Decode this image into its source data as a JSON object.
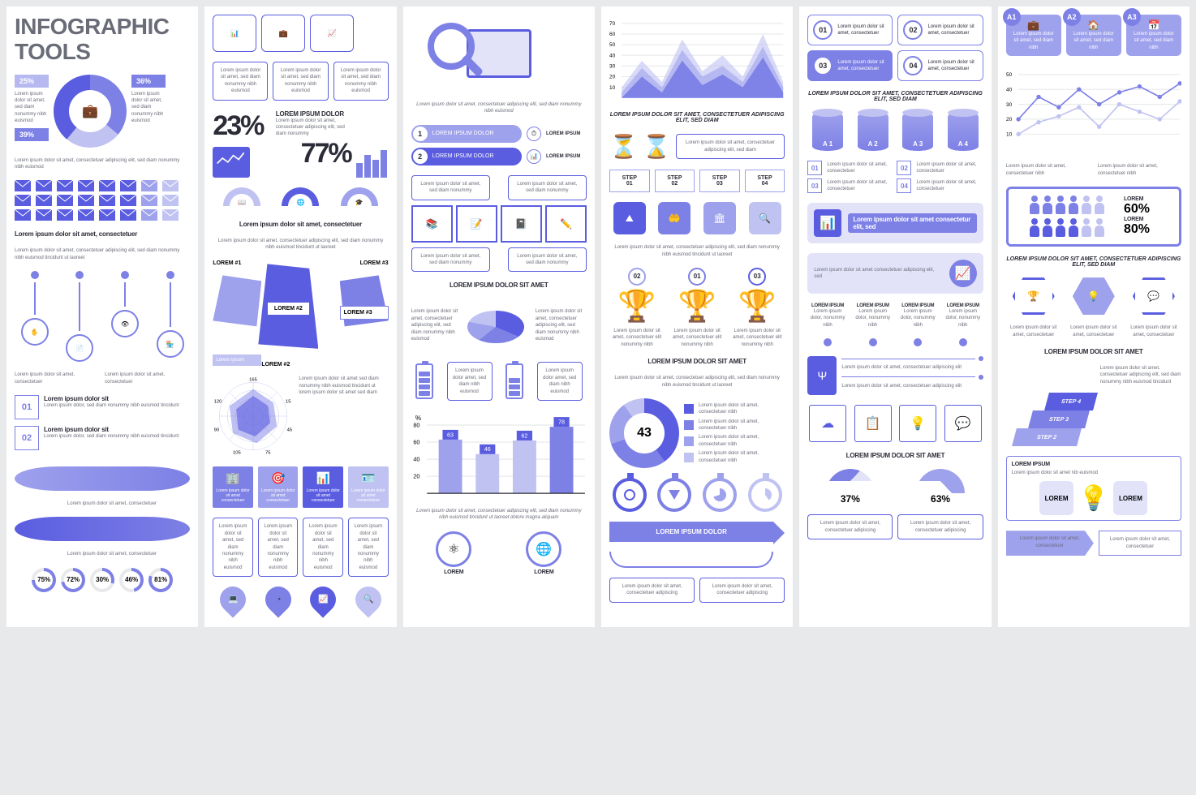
{
  "colors": {
    "primary": "#5a5de0",
    "primary_light": "#7d80e5",
    "primary_lighter": "#9ea1ec",
    "primary_pale": "#c0c2f2",
    "primary_faint": "#e2e3f9",
    "text_dark": "#2b2c37",
    "text_gray": "#6a6d78",
    "bg": "#e8e9eb",
    "white": "#ffffff"
  },
  "lorem": {
    "short": "Lorem ipsum dolor sit",
    "med": "Lorem ipsum dolor sit amet, consectetuer",
    "long": "Lorem ipsum dolor sit amet, consectetuer adipiscing elit, sed diam nonummy nibh euismod",
    "cap_short": "LOREM IPSUM",
    "cap_med": "LOREM IPSUM DOLOR SIT AMET",
    "cap_long": "LOREM IPSUM DOLOR SIT AMET, CONSECTETUER ADIPISCING ELIT, SED DIAM",
    "tiny": "Lorem ipsum",
    "body": "Lorem ipsum dolor sit amet, sed diam nonummy nibh euismod"
  },
  "col1": {
    "title": "INFOGRAPHIC TOOLS",
    "donut": {
      "segments": [
        36,
        25,
        39
      ],
      "colors": [
        "#7d80e5",
        "#c0c2f2",
        "#5a5de0"
      ],
      "labels": [
        "36%",
        "25%",
        "39%"
      ]
    },
    "donut_caption": "Lorem ipsum dolor sit amet, consectetuer adipiscing elit, sed diam nonummy nibh euismod",
    "envelopes": {
      "rows": 3,
      "cols": 8,
      "colors": [
        "#5a5de0",
        "#5a5de0",
        "#5a5de0",
        "#5a5de0",
        "#5a5de0",
        "#5a5de0",
        "#9ea1ec",
        "#c0c2f2"
      ]
    },
    "env_title": "Lorem ipsum dolor sit amet, consectetuer",
    "env_body": "Lorem ipsum dolor sit amet, consectetuer adipiscing elit, sed diam nonummy nibh euismod tincidunt ut laoreet",
    "dots_body": "Lorem ipsum dolor sit amet, consectetuer",
    "num_items": [
      {
        "n": "01",
        "title": "Lorem ipsum dolor sit",
        "body": "Lorem ipsum dolor, sed diam nonummy nibh euismod tincidunt"
      },
      {
        "n": "02",
        "title": "Lorem ipsum dolor sit",
        "body": "Lorem ipsum dolor, sed diam nonummy nibh euismod tincidunt"
      }
    ],
    "rings": [
      {
        "v": 75
      },
      {
        "v": 72
      },
      {
        "v": 30
      },
      {
        "v": 46
      },
      {
        "v": 81
      }
    ]
  },
  "col2": {
    "top_boxes_body": "Lorem ipsum dolor sit amet, sed diam nonummy nibh euismod",
    "big1": "23%",
    "big2": "77%",
    "big_title": "LOREM IPSUM DOLOR",
    "big_body": "Lorem ipsum dolor sit amet, consectetuer adipiscing elit, sed diam nonummy",
    "arch_title": "Lorem ipsum dolor sit amet, consectetuer",
    "arch_body": "Lorem ipsum dolor sit amet, consectetuer adipiscing elit, sed diam nonummy nibh euismod tincidunt ut laoreet",
    "labels": [
      "LOREM #1",
      "LOREM #2",
      "LOREM #3",
      "LOREM #2",
      "LOREM #3"
    ],
    "radar": {
      "axes": [
        165,
        15,
        45,
        75,
        105,
        90,
        120
      ],
      "text": [
        "165",
        "15",
        "45",
        "75",
        "105",
        "90",
        "120"
      ]
    },
    "radar_body": "Lorem ipsum dolor sit amet sed diam nonummy nibh euismod tincidunt ut lorem ipsum dolor sit amet sed diam",
    "icon_row_body": "Lorem ipsum dolor sit amet consectetuer",
    "bottom_boxes_body": "Lorem ipsum dolor sit amet, sed diam nonummy nibh euismod"
  },
  "col3": {
    "hero_body": "Lorem ipsum dolor sit amet, consectetuer adipiscing elit, sed diam nonummy nibh euismod",
    "pills": [
      {
        "n": "1",
        "label": "LOREM IPSUM DOLOR"
      },
      {
        "n": "2",
        "label": "LOREM IPSUM DOLOR"
      }
    ],
    "pill_side": "LOREM IPSUM",
    "flow_body": "Lorem ipsum dolor sit amet, sed diam nonummy",
    "pie_title": "LOREM IPSUM DOLOR SIT AMET",
    "pie_body": "Lorem ipsum dolor sit amet, consectetuer adipiscing elit, sed diam nonummy nibh euismod",
    "pie": {
      "segments": [
        35,
        25,
        20,
        20
      ],
      "colors": [
        "#5a5de0",
        "#7d80e5",
        "#9ea1ec",
        "#c0c2f2"
      ]
    },
    "batt_body": "Lorem ipsum dolor amet, sed diam nibh euismod",
    "bars": {
      "ylabel": "%",
      "max": 80,
      "ticks": [
        20,
        40,
        60,
        80
      ],
      "values": [
        63,
        46,
        62,
        78
      ],
      "labels": [
        "63",
        "46",
        "62",
        "78"
      ],
      "colors": [
        "#9ea1ec",
        "#c0c2f2",
        "#c0c2f2",
        "#7d80e5"
      ]
    },
    "bars_caption": "Lorem ipsum dolor sit amet, consectetuer adipiscing elit, sed diam nonummy nibh euismod tincidunt ut laoreet dolore magna aliquam",
    "bottom_circle_label": "LOREM"
  },
  "col4": {
    "area": {
      "ymax": 70,
      "yticks": [
        10,
        20,
        30,
        40,
        50,
        60,
        70
      ],
      "series": [
        {
          "color": "#c0c2f2",
          "points": [
            10,
            35,
            15,
            55,
            25,
            40,
            20,
            60,
            15
          ]
        },
        {
          "color": "#9ea1ec",
          "points": [
            5,
            28,
            10,
            45,
            20,
            30,
            15,
            48,
            10
          ]
        },
        {
          "color": "#5a5de0",
          "points": [
            0,
            20,
            5,
            35,
            12,
            22,
            10,
            38,
            5
          ]
        }
      ]
    },
    "area_title": "LOREM IPSUM DOLOR SIT AMET, CONSECTETUER ADIPISCING ELIT, SED DIAM",
    "hourglass_body": "Lorem ipsum dolor sit amet, consectetuer adipiscing elit, sed diam",
    "steps": [
      "STEP 01",
      "STEP 02",
      "STEP 03",
      "STEP 04"
    ],
    "steps_cap": "Lorem ipsum dolor sit amet, consectetuer adipiscing elit, sed diam nonummy nibh euismod tincidunt ut laoreet",
    "trophies": [
      {
        "n": "02",
        "c": "#9ea1ec"
      },
      {
        "n": "01",
        "c": "#7d80e5"
      },
      {
        "n": "03",
        "c": "#5a5de0"
      }
    ],
    "trophy_body": "Lorem ipsum dolor sit amet, consectetuer elit nonummy nibh",
    "ring_title": "LOREM IPSUM DOLOR SIT AMET",
    "ring_body": "Lorem ipsum dolor sit amet, consectetuer adipiscing elit, sed diam nonummy nibh euismod tincidunt ut laoreet",
    "ring": {
      "value": 43,
      "segments": [
        40,
        30,
        20,
        10
      ],
      "colors": [
        "#5a5de0",
        "#7d80e5",
        "#9ea1ec",
        "#c0c2f2"
      ]
    },
    "legend_body": "Lorem ipsum dolor sit amet, consectetuer nibh",
    "arrow_label": "LOREM IPSUM DOLOR",
    "arrow_body": "Lorem ipsum dolor sit amet, consectetuer adipiscing"
  },
  "col5": {
    "quads": [
      {
        "n": "01"
      },
      {
        "n": "02"
      },
      {
        "n": "03"
      },
      {
        "n": "04"
      }
    ],
    "quad_body": "Lorem ipsum dolor sit amet, consectetuer",
    "quad_title": "LOREM IPSUM DOLOR SIT AMET, CONSECTETUER ADIPISCING ELIT, SED DIAM",
    "cyls": [
      "A 1",
      "A 2",
      "A 3",
      "A 4"
    ],
    "numlist": [
      {
        "n": "01",
        "t": "Lorem ipsum dolor sit amet, consectetuer"
      },
      {
        "n": "02",
        "t": "Lorem ipsum dolor sit amet, consectetuer"
      },
      {
        "n": "03",
        "t": "Lorem ipsum dolor sit amet, consectetuer"
      },
      {
        "n": "04",
        "t": "Lorem ipsum dolor sit amet, consectetuer"
      }
    ],
    "banner1_title": "Lorem ipsum dolor sit amet consectetur elit, sed",
    "banner1_body": "Lorem ipsum dolor sit amet consectetuer adipiscing elit, sed",
    "tabs": [
      {
        "t": "LOREM IPSUM",
        "b": "Lorem ipsum dolor, nonummy nibh"
      }
    ],
    "usb_body": "Lorem ipsum dolor sit amet, consectetuer adipiscing elit",
    "iconrow_title": "LOREM IPSUM DOLOR SIT AMET",
    "gauges": [
      {
        "v": 37,
        "c": "#7d80e5"
      },
      {
        "v": 63,
        "c": "#9ea1ec"
      }
    ],
    "gauge_body": "Lorem ipsum dolor sit amet, consectetuer adipiscing"
  },
  "col6": {
    "cards": [
      {
        "n": "A1"
      },
      {
        "n": "A2"
      },
      {
        "n": "A3"
      }
    ],
    "card_body": "Lorem ipsum dolor sit amet, sed diam nibh",
    "line": {
      "ymax": 50,
      "yticks": [
        10,
        20,
        30,
        40,
        50
      ],
      "series": [
        {
          "color": "#7d80e5",
          "points": [
            20,
            35,
            28,
            40,
            30,
            38,
            42,
            35,
            44
          ]
        },
        {
          "color": "#c0c2f2",
          "points": [
            10,
            18,
            22,
            28,
            15,
            30,
            25,
            20,
            32
          ]
        }
      ]
    },
    "line_legend": "Lorem ipsum dolor sit amet, consectetuer nibh",
    "people": [
      {
        "pct": "60%",
        "label": "LOREM"
      },
      {
        "pct": "80%",
        "label": "LOREM"
      }
    ],
    "people_title": "LOREM IPSUM DOLOR SIT AMET, CONSECTETUER ADIPISCING ELIT, SED DIAM",
    "hex_body": "Lorem ipsum dolor sit amet, consectetuer",
    "stairs_title": "LOREM IPSUM DOLOR SIT AMET",
    "stairs": [
      "STEP 2",
      "STEP 3",
      "STEP 4"
    ],
    "stairs_body": "Lorem ipsum dolor sit amet, consectetuer adipiscing elit, sed diam nonummy nibh euismod tincidunt",
    "bulb_title": "LOREM IPSUM",
    "bulb_body": "Lorem ipsum dolor sit amet nib euismod",
    "bulb_side": "LOREM",
    "bottom_boxes": "Lorem ipsum dolor sit amet, consectetuer"
  }
}
